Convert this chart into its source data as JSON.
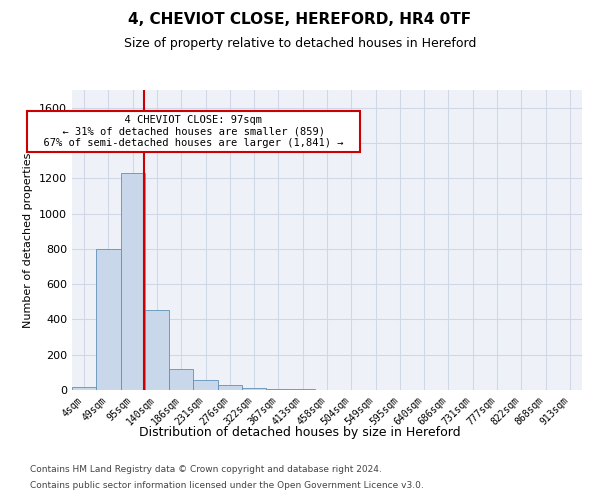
{
  "title1": "4, CHEVIOT CLOSE, HEREFORD, HR4 0TF",
  "title2": "Size of property relative to detached houses in Hereford",
  "xlabel": "Distribution of detached houses by size in Hereford",
  "ylabel": "Number of detached properties",
  "footnote1": "Contains HM Land Registry data © Crown copyright and database right 2024.",
  "footnote2": "Contains public sector information licensed under the Open Government Licence v3.0.",
  "annotation_line1": "4 CHEVIOT CLOSE: 97sqm",
  "annotation_line2": "← 31% of detached houses are smaller (859)",
  "annotation_line3": "67% of semi-detached houses are larger (1,841) →",
  "bar_color": "#c8d8ea",
  "bar_edge_color": "#6090b8",
  "marker_color": "#cc0000",
  "grid_color": "#d0d8e8",
  "background_color": "#eef2f8",
  "ylim": [
    0,
    1700
  ],
  "yticks": [
    0,
    200,
    400,
    600,
    800,
    1000,
    1200,
    1400,
    1600
  ],
  "bin_labels": [
    "4sqm",
    "49sqm",
    "95sqm",
    "140sqm",
    "186sqm",
    "231sqm",
    "276sqm",
    "322sqm",
    "367sqm",
    "413sqm",
    "458sqm",
    "504sqm",
    "549sqm",
    "595sqm",
    "640sqm",
    "686sqm",
    "731sqm",
    "777sqm",
    "822sqm",
    "868sqm",
    "913sqm"
  ],
  "bar_values": [
    18,
    800,
    1230,
    455,
    120,
    58,
    28,
    14,
    7,
    4,
    2,
    0,
    0,
    0,
    0,
    0,
    0,
    0,
    0,
    0,
    0
  ],
  "marker_bin_index": 2
}
